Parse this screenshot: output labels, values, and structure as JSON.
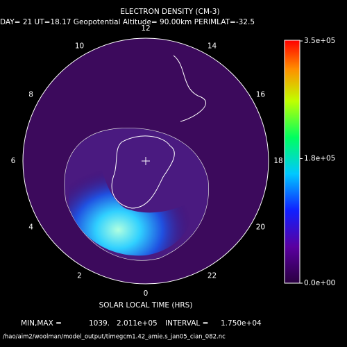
{
  "header": {
    "title": "ELECTRON DENSITY (CM-3)",
    "subtitle": "DAY= 21 UT=18.17 Geopotential Altitude= 90.00km PERIMLAT=-32.5"
  },
  "local_time_labels": [
    12,
    14,
    16,
    18,
    20,
    22,
    0,
    2,
    4,
    6,
    8,
    10
  ],
  "axis_label": "SOLAR LOCAL TIME (HRS)",
  "colorbar": {
    "ticks": [
      {
        "value": 0,
        "label": "0.0e+00"
      },
      {
        "value": 180000,
        "label": "1.8e+05"
      },
      {
        "value": 350000,
        "label": "3.5e+05"
      }
    ]
  },
  "footer": {
    "min_max_label": "MIN,MAX =",
    "min": "1039.",
    "max": "2.011e+05",
    "interval_label": "INTERVAL =",
    "interval": "1.750e+04",
    "file": "/hao/aim2/woolman/model_output/timegcm1.42_amie.s_jan05_cian_082.nc"
  }
}
